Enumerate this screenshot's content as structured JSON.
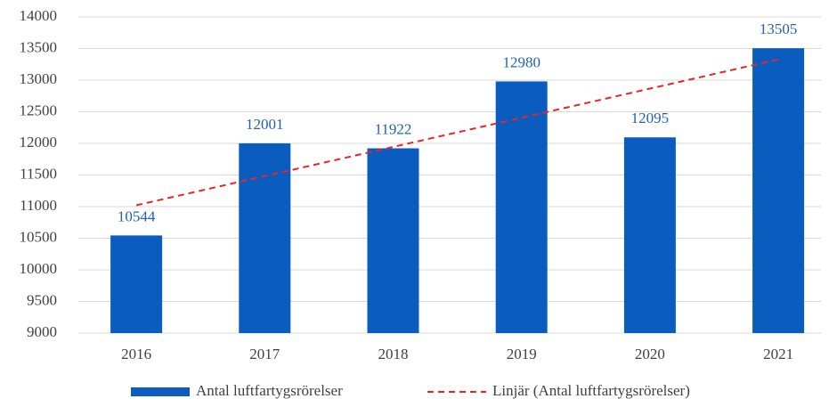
{
  "chart_data": {
    "type": "bar",
    "categories": [
      "2016",
      "2017",
      "2018",
      "2019",
      "2020",
      "2021"
    ],
    "series": [
      {
        "name": "Antal luftfartygsrörelser",
        "color": "#0b5cbf",
        "values": [
          10544,
          12001,
          11922,
          12980,
          12095,
          13505
        ]
      },
      {
        "name": "Linjär (Antal luftfartygsrörelser)",
        "color": "#e8262a",
        "type": "line",
        "dashed": true,
        "values": [
          11021,
          11483,
          11944,
          12405,
          12866,
          13328
        ]
      }
    ],
    "ylim": [
      9000,
      14000
    ],
    "yticks": [
      9000,
      9500,
      10000,
      10500,
      11000,
      11500,
      12000,
      12500,
      13000,
      13500,
      14000
    ],
    "grid": true,
    "legend": "bottom"
  }
}
